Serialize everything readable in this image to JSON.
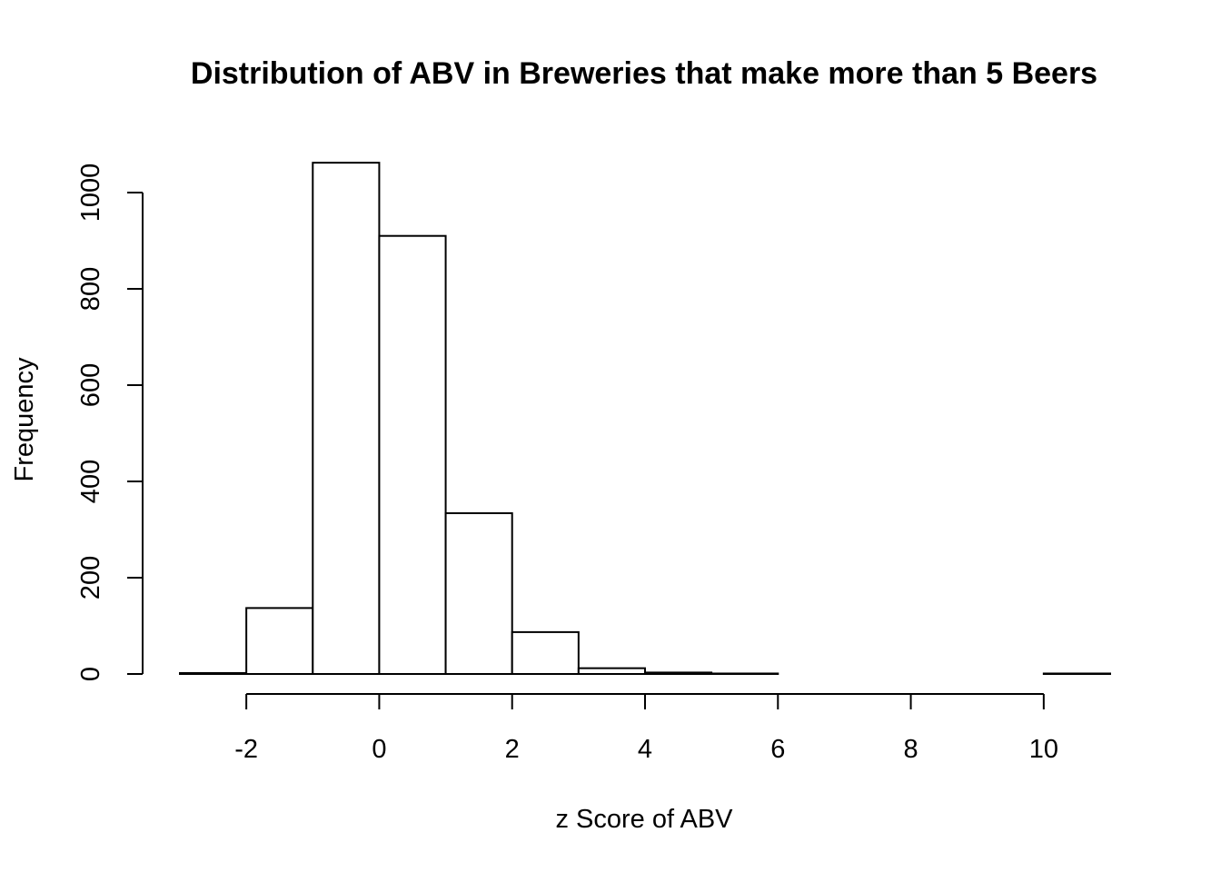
{
  "chart_data": {
    "type": "bar",
    "title": "Distribution of ABV in Breweries that make more than 5 Beers",
    "xlabel": "z Score of ABV",
    "ylabel": "Frequency",
    "bins": [
      {
        "start": -3,
        "end": -2,
        "value": 2
      },
      {
        "start": -2,
        "end": -1,
        "value": 137
      },
      {
        "start": -1,
        "end": 0,
        "value": 1062
      },
      {
        "start": 0,
        "end": 1,
        "value": 910
      },
      {
        "start": 1,
        "end": 2,
        "value": 334
      },
      {
        "start": 2,
        "end": 3,
        "value": 87
      },
      {
        "start": 3,
        "end": 4,
        "value": 12
      },
      {
        "start": 4,
        "end": 5,
        "value": 3
      },
      {
        "start": 5,
        "end": 6,
        "value": 1
      },
      {
        "start": 6,
        "end": 7,
        "value": 0
      },
      {
        "start": 7,
        "end": 8,
        "value": 0
      },
      {
        "start": 8,
        "end": 9,
        "value": 0
      },
      {
        "start": 9,
        "end": 10,
        "value": 0
      },
      {
        "start": 10,
        "end": 11,
        "value": 1
      }
    ],
    "xlim": [
      -3,
      11
    ],
    "ylim": [
      0,
      1062
    ],
    "x_ticks": [
      -2,
      0,
      2,
      4,
      6,
      8,
      10
    ],
    "x_tick_labels": [
      "-2",
      "0",
      "2",
      "4",
      "6",
      "8",
      "10"
    ],
    "y_ticks": [
      0,
      200,
      400,
      600,
      800,
      1000
    ],
    "y_tick_labels": [
      "0",
      "200",
      "400",
      "600",
      "800",
      "1000"
    ],
    "grid": false,
    "colors": {
      "bar_fill": "#ffffff",
      "bar_stroke": "#000000"
    }
  }
}
